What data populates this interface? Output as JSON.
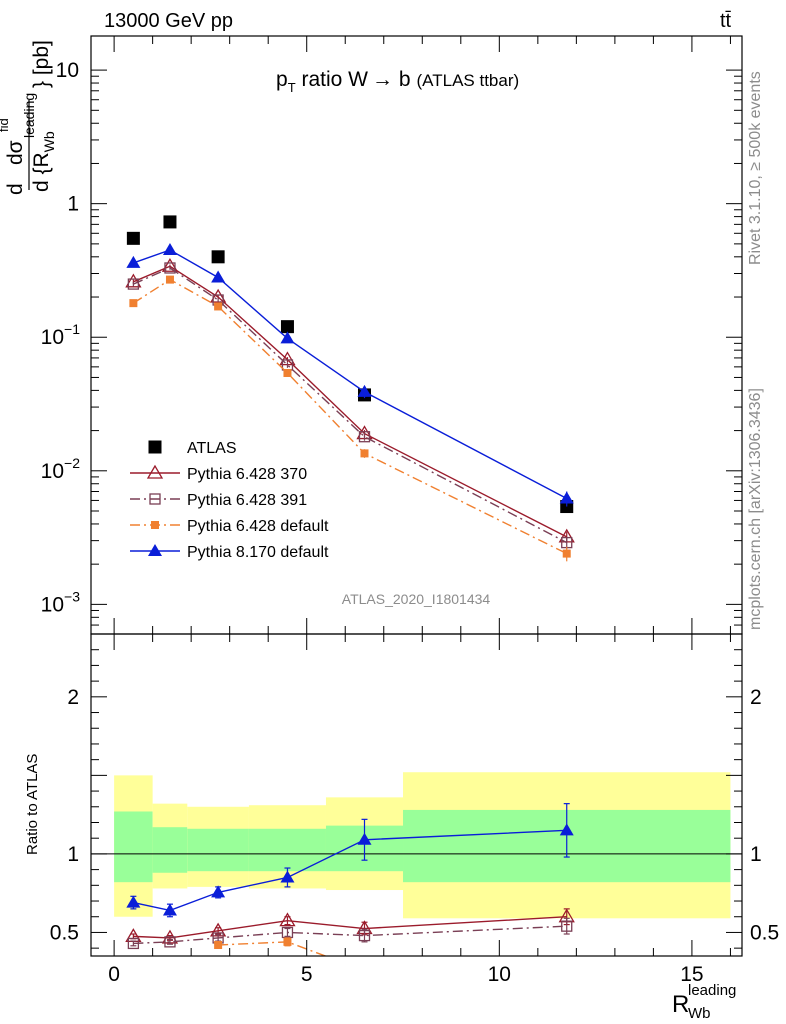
{
  "header": {
    "left": "13000 GeV pp",
    "right": "tt̄"
  },
  "side_labels": {
    "rivet": "Rivet 3.1.10, ≥ 500k events",
    "mcplots": "mcplots.cern.ch [arXiv:1306.3436]"
  },
  "watermark": "ATLAS_2020_I1801434",
  "colors": {
    "atlas": "#000000",
    "p370": "#9b1b2b",
    "p391": "#7a3f55",
    "pdef6": "#f08030",
    "p8": "#0a1ed8",
    "band_yellow": "#ffff99",
    "band_green": "#99ff99"
  },
  "chart_data": [
    {
      "type": "scatter",
      "panel": "main",
      "title": "p_T ratio W → b (ATLAS ttbar)",
      "title_parts": {
        "p": "p",
        "sub": "T",
        "rest": " ratio W",
        "arrow": "→",
        "b": " b",
        "small": "(ATLAS ttbar)"
      },
      "ylabel_parts": {
        "d": "d",
        "sigma": "dσ",
        "fid": "fid",
        "den": "d {R",
        "den_sub": "Wb",
        "den_sup": "leading",
        "close": "} [pb]"
      },
      "yscale": "log",
      "ylim": [
        0.0006,
        18
      ],
      "xlim": [
        -0.6,
        16.3
      ],
      "yticks": [
        {
          "value": 10,
          "label": "10"
        },
        {
          "value": 1,
          "label": "1"
        },
        {
          "value": 0.1,
          "label": "10",
          "exp": "−1"
        },
        {
          "value": 0.01,
          "label": "10",
          "exp": "−2"
        },
        {
          "value": 0.001,
          "label": "10",
          "exp": "−3"
        }
      ],
      "legend_position": "lower-left",
      "series": [
        {
          "name": "ATLAS",
          "key": "atlas",
          "marker": "square-filled",
          "line": "none",
          "x": [
            0.5,
            1.45,
            2.7,
            4.5,
            6.5,
            11.75
          ],
          "y": [
            0.55,
            0.73,
            0.4,
            0.12,
            0.037,
            0.0054
          ],
          "err": [
            0,
            0,
            0,
            0,
            0,
            0
          ]
        },
        {
          "name": "Pythia 6.428 370",
          "key": "p370",
          "marker": "triangle-open",
          "line": "solid",
          "x": [
            0.5,
            1.45,
            2.7,
            4.5,
            6.5,
            11.75
          ],
          "y": [
            0.26,
            0.34,
            0.2,
            0.068,
            0.019,
            0.0032
          ],
          "err": [
            0.01,
            0.01,
            0.007,
            0.003,
            0.0012,
            0.0003
          ]
        },
        {
          "name": "Pythia 6.428 391",
          "key": "p391",
          "marker": "square-open",
          "line": "dashdot",
          "x": [
            0.5,
            1.45,
            2.7,
            4.5,
            6.5,
            11.75
          ],
          "y": [
            0.25,
            0.33,
            0.19,
            0.062,
            0.018,
            0.0029
          ],
          "err": [
            0.01,
            0.01,
            0.007,
            0.003,
            0.0012,
            0.0003
          ]
        },
        {
          "name": "Pythia 6.428 default",
          "key": "pdef6",
          "marker": "square-filled-small",
          "line": "dashdot",
          "x": [
            0.5,
            1.45,
            2.7,
            4.5,
            6.5,
            11.75
          ],
          "y": [
            0.18,
            0.27,
            0.17,
            0.054,
            0.0135,
            0.0024
          ],
          "err": [
            0.008,
            0.01,
            0.006,
            0.003,
            0.001,
            0.0003
          ]
        },
        {
          "name": "Pythia 8.170 default",
          "key": "p8",
          "marker": "triangle-filled",
          "line": "solid",
          "x": [
            0.5,
            1.45,
            2.7,
            4.5,
            6.5,
            11.75
          ],
          "y": [
            0.36,
            0.45,
            0.28,
            0.098,
            0.039,
            0.0062
          ],
          "err": [
            0.01,
            0.012,
            0.008,
            0.004,
            0.004,
            0.0008
          ]
        }
      ]
    },
    {
      "type": "line",
      "panel": "ratio",
      "ylabel": "Ratio to ATLAS",
      "xlabel_parts": {
        "R": "R",
        "sub": "Wb",
        "sup": "leading"
      },
      "xlim": [
        -0.6,
        16.3
      ],
      "ylim": [
        0.35,
        2.4
      ],
      "xticks": [
        {
          "value": 0,
          "label": "0"
        },
        {
          "value": 5,
          "label": "5"
        },
        {
          "value": 10,
          "label": "10"
        },
        {
          "value": 15,
          "label": "15"
        }
      ],
      "yticks": [
        {
          "value": 0.5,
          "label": "0.5"
        },
        {
          "value": 1,
          "label": "1"
        },
        {
          "value": 2,
          "label": "2"
        }
      ],
      "bands": [
        {
          "x0": 0,
          "x1": 1,
          "yellow": [
            0.6,
            1.5
          ],
          "green": [
            0.82,
            1.27
          ]
        },
        {
          "x0": 1,
          "x1": 1.9,
          "yellow": [
            0.78,
            1.32
          ],
          "green": [
            0.88,
            1.17
          ]
        },
        {
          "x0": 1.9,
          "x1": 3.5,
          "yellow": [
            0.79,
            1.3
          ],
          "green": [
            0.89,
            1.16
          ]
        },
        {
          "x0": 3.5,
          "x1": 5.5,
          "yellow": [
            0.78,
            1.31
          ],
          "green": [
            0.89,
            1.16
          ]
        },
        {
          "x0": 5.5,
          "x1": 7.5,
          "yellow": [
            0.77,
            1.36
          ],
          "green": [
            0.89,
            1.18
          ]
        },
        {
          "x0": 7.5,
          "x1": 16,
          "yellow": [
            0.59,
            1.52
          ],
          "green": [
            0.82,
            1.28
          ]
        }
      ],
      "series": [
        {
          "name": "Pythia 6.428 370",
          "key": "p370",
          "marker": "triangle-open",
          "line": "solid",
          "x": [
            0.5,
            1.45,
            2.7,
            4.5,
            6.5,
            11.75
          ],
          "y": [
            0.475,
            0.465,
            0.51,
            0.575,
            0.525,
            0.6
          ],
          "err": [
            0.015,
            0.015,
            0.02,
            0.025,
            0.04,
            0.05
          ]
        },
        {
          "name": "Pythia 6.428 391",
          "key": "p391",
          "marker": "square-open",
          "line": "dashdot",
          "x": [
            0.5,
            1.45,
            2.7,
            4.5,
            6.5,
            11.75
          ],
          "y": [
            0.43,
            0.44,
            0.465,
            0.5,
            0.48,
            0.54
          ],
          "err": [
            0.015,
            0.015,
            0.02,
            0.025,
            0.04,
            0.05
          ]
        },
        {
          "name": "Pythia 6.428 default",
          "key": "pdef6",
          "marker": "square-filled-small",
          "line": "dashdot",
          "x": [
            2.7,
            4.5,
            5.7
          ],
          "y": [
            0.42,
            0.44,
            0.33
          ],
          "err": [
            0.015,
            0.025,
            0
          ],
          "markers_shown": [
            true,
            true,
            false
          ]
        },
        {
          "name": "Pythia 8.170 default",
          "key": "p8",
          "marker": "triangle-filled",
          "line": "solid",
          "x": [
            0.5,
            1.45,
            2.7,
            4.5,
            6.5,
            11.75
          ],
          "y": [
            0.69,
            0.64,
            0.755,
            0.85,
            1.09,
            1.15
          ],
          "err": [
            0.04,
            0.04,
            0.035,
            0.06,
            0.13,
            0.17
          ]
        }
      ]
    }
  ]
}
